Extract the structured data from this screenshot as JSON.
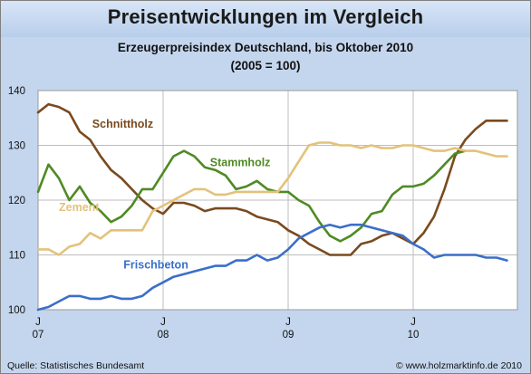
{
  "title": "Preisentwicklungen im Vergleich",
  "subtitle": "Erzeugerpreisindex Deutschland, bis Oktober 2010",
  "subtitle2": "(2005 = 100)",
  "source": "Quelle: Statistisches Bundesamt",
  "copyright": "© www.holzmarktinfo.de 2010",
  "chart_data": {
    "type": "line",
    "title": "Preisentwicklungen im Vergleich",
    "ylim": [
      100,
      140
    ],
    "yticks": [
      100,
      110,
      120,
      130,
      140
    ],
    "xlim": [
      0,
      46
    ],
    "xticks": [
      {
        "x": 0,
        "month": "J",
        "year": "07"
      },
      {
        "x": 12,
        "month": "J",
        "year": "08"
      },
      {
        "x": 24,
        "month": "J",
        "year": "09"
      },
      {
        "x": 36,
        "month": "J",
        "year": "10"
      }
    ],
    "grid": true,
    "series": [
      {
        "name": "Schnittholz",
        "color": "#7a4a1e",
        "label_x": 5.2,
        "label_y": 133.2,
        "values": [
          136,
          137.5,
          137,
          136,
          132.5,
          131,
          128,
          125.5,
          124,
          122,
          120,
          118.5,
          117.5,
          119.5,
          119.5,
          119,
          118,
          118.5,
          118.5,
          118.5,
          118,
          117,
          116.5,
          116,
          114.5,
          113.5,
          112,
          111,
          110,
          110,
          110,
          112,
          112.5,
          113.5,
          114,
          113,
          112,
          114,
          117,
          122,
          128,
          131,
          133,
          134.5,
          134.5,
          134.5
        ]
      },
      {
        "name": "Stammholz",
        "color": "#4f8a24",
        "label_x": 16.5,
        "label_y": 126.2,
        "values": [
          121.5,
          126.5,
          124,
          120,
          122.5,
          119.5,
          118,
          116,
          117,
          119,
          122,
          122,
          125,
          128,
          129,
          128,
          126,
          125.5,
          124.5,
          122,
          122.5,
          123.5,
          122,
          121.5,
          121.5,
          120,
          119,
          116,
          113.5,
          112.5,
          113.5,
          115,
          117.5,
          118,
          121,
          122.5,
          122.5,
          123,
          124.5,
          126.5,
          128.5,
          129,
          null,
          null,
          null,
          null
        ]
      },
      {
        "name": "Zement",
        "color": "#e3c27a",
        "label_x": 2,
        "label_y": 118,
        "values": [
          111,
          111,
          110,
          111.5,
          112,
          114,
          113,
          114.5,
          114.5,
          114.5,
          114.5,
          118,
          119,
          120,
          121,
          122,
          122,
          121,
          121,
          121.5,
          121.5,
          121.5,
          121.5,
          121.5,
          124,
          127,
          130,
          130.5,
          130.5,
          130,
          130,
          129.5,
          130,
          129.5,
          129.5,
          130,
          130,
          129.5,
          129,
          129,
          129.5,
          129,
          129,
          128.5,
          128,
          128
        ]
      },
      {
        "name": "Frischbeton",
        "color": "#3a6fc9",
        "label_x": 8.2,
        "label_y": 107.5,
        "values": [
          100,
          100.5,
          101.5,
          102.5,
          102.5,
          102,
          102,
          102.5,
          102,
          102,
          102.5,
          104,
          105,
          106,
          106.5,
          107,
          107.5,
          108,
          108,
          109,
          109,
          110,
          109,
          109.5,
          111,
          113,
          114,
          115,
          115.5,
          115,
          115.5,
          115.5,
          115,
          114.5,
          114,
          113.5,
          112,
          111,
          109.5,
          110,
          110,
          110,
          110,
          109.5,
          109.5,
          109
        ]
      }
    ]
  }
}
